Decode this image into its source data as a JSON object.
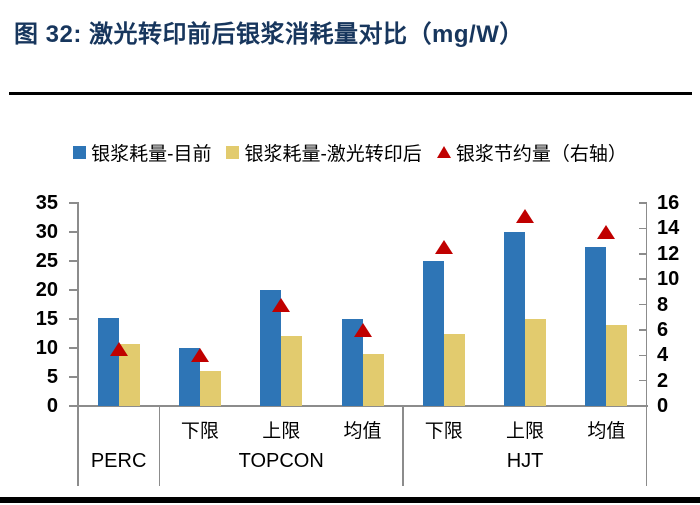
{
  "figure": {
    "title": "图 32: 激光转印前后银浆消耗量对比（mg/W）"
  },
  "chart_data": {
    "type": "bar",
    "title": "图 32: 激光转印前后银浆消耗量对比（mg/W）",
    "unit": "mg/W",
    "legend_position": "top",
    "gridlines": false,
    "categories": [
      "PERC",
      "TOPCON-下限",
      "TOPCON-上限",
      "TOPCON-均值",
      "HJT-下限",
      "HJT-上限",
      "HJT-均值"
    ],
    "group_labels": [
      "PERC",
      "TOPCON",
      "HJT"
    ],
    "group_sizes": [
      1,
      3,
      3
    ],
    "sub_labels": [
      "",
      "下限",
      "上限",
      "均值",
      "下限",
      "上限",
      "均值"
    ],
    "series": [
      {
        "name": "银浆耗量-目前",
        "kind": "bar",
        "axis": "left",
        "color": "#2E75B6",
        "values": [
          15.2,
          10,
          20,
          15,
          25,
          30,
          27.5
        ]
      },
      {
        "name": "银浆耗量-激光转印后",
        "kind": "bar",
        "axis": "left",
        "color": "#E2CB6E",
        "values": [
          10.7,
          6,
          12,
          9,
          12.5,
          15,
          14
        ]
      },
      {
        "name": "银浆节约量（右轴）",
        "kind": "triangle",
        "axis": "right",
        "color": "#C00000",
        "values": [
          4.5,
          4,
          8,
          6,
          12.5,
          15,
          13.75
        ]
      }
    ],
    "left_axis": {
      "min": 0,
      "max": 35,
      "step": 5,
      "ticks": [
        35,
        30,
        25,
        20,
        15,
        10,
        5,
        0
      ]
    },
    "right_axis": {
      "min": 0,
      "max": 16,
      "step": 2,
      "ticks": [
        16,
        14,
        12,
        10,
        8,
        6,
        4,
        2,
        0
      ]
    }
  },
  "colors": {
    "title": "#17365D",
    "axis_line": "#8C8C8C",
    "text": "#000000",
    "rule": "#000000"
  }
}
